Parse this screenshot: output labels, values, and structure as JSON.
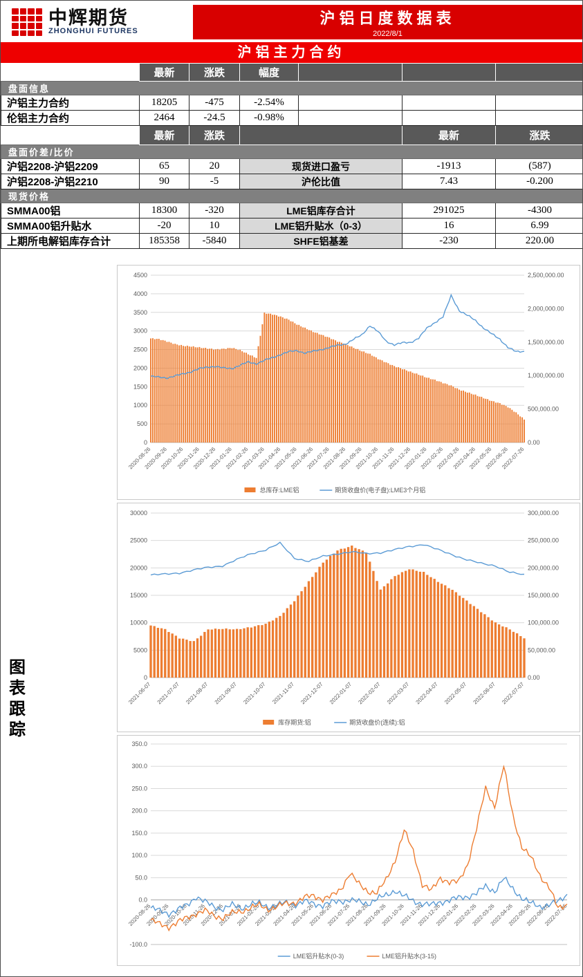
{
  "header": {
    "logo_title": "中辉期货",
    "logo_subtitle": "ZHONGHUI FUTURES",
    "report_title": "沪铝日度数据表",
    "report_date": "2022/8/1",
    "banner": "沪铝主力合约"
  },
  "colors": {
    "header_red": "#d80000",
    "banner_red": "#ee0000",
    "up_red": "#ff0000",
    "down_green": "#00b050",
    "table_dark": "#595959",
    "table_section": "#808080",
    "table_label_bg": "#d9d9d9",
    "bar_orange": "#ED7D31",
    "line_blue": "#5B9BD5"
  },
  "table": {
    "headers": {
      "latest": "最新",
      "change": "涨跌",
      "pct": "幅度"
    },
    "sections": [
      {
        "title": "盘面信息",
        "rows": [
          {
            "label": "沪铝主力合约",
            "latest": "18205",
            "change": "-475",
            "change_color": "green",
            "pct": "-2.54%"
          },
          {
            "label": "伦铝主力合约",
            "latest": "2464",
            "change": "-24.5",
            "change_color": "green",
            "pct": "-0.98%"
          }
        ]
      },
      {
        "title": "盘面价差/比价",
        "rows": [
          {
            "label": "沪铝2208-沪铝2209",
            "latest": "65",
            "change": "20",
            "change_color": "red",
            "mid_label": "现货进口盈亏",
            "latest2": "-1913",
            "latest2_color": "green",
            "change2": "(587)",
            "change2_color": "green"
          },
          {
            "label": "沪铝2208-沪铝2210",
            "latest": "90",
            "change": "-5",
            "change_color": "green",
            "mid_label": "沪伦比值",
            "latest2": "7.43",
            "change2": "-0.200",
            "change2_color": "green"
          }
        ]
      },
      {
        "title": "现货价格",
        "rows": [
          {
            "label": "SMMA00铝",
            "latest": "18300",
            "change": "-320",
            "change_color": "green",
            "mid_label": "LME铝库存合计",
            "latest2": "291025",
            "change2": "-4300",
            "change2_color": "green"
          },
          {
            "label": "SMMA00铝升贴水",
            "latest": "-20",
            "change": "10",
            "change_color": "red",
            "mid_label": "LME铝升贴水（0-3）",
            "latest2": "16",
            "change2": "6.99"
          },
          {
            "label": "上期所电解铝库存合计",
            "latest": "185358",
            "change": "-5840",
            "change_color": "green",
            "mid_label": "SHFE铝基差",
            "latest2": "-230",
            "change2": "220.00"
          }
        ]
      }
    ]
  },
  "side_label": "图表跟踪",
  "chart_data": [
    {
      "type": "bar+line",
      "x_labels": [
        "2020-08-26",
        "2020-09-26",
        "2020-10-26",
        "2020-11-26",
        "2020-12-26",
        "2021-01-26",
        "2021-02-26",
        "2021-03-26",
        "2021-04-26",
        "2021-05-26",
        "2021-06-26",
        "2021-07-26",
        "2021-08-26",
        "2021-09-26",
        "2021-10-26",
        "2021-11-26",
        "2021-12-26",
        "2022-01-26",
        "2022-02-26",
        "2022-03-26",
        "2022-04-26",
        "2022-05-26",
        "2022-06-26",
        "2022-07-26"
      ],
      "left_axis": {
        "min": 0,
        "max": 4500,
        "ticks": [
          [
            0,
            "0"
          ],
          [
            500,
            "500"
          ],
          [
            1000,
            "1000"
          ],
          [
            1500,
            "1500"
          ],
          [
            2000,
            "2000"
          ],
          [
            2500,
            "2500"
          ],
          [
            3000,
            "3000"
          ],
          [
            3500,
            "3500"
          ],
          [
            4000,
            "4000"
          ],
          [
            4500,
            "4500"
          ]
        ]
      },
      "right_axis": {
        "min": 0,
        "max": 2500000,
        "ticks": [
          [
            0,
            "0.00"
          ],
          [
            500000,
            "500,000.00"
          ],
          [
            1000000,
            "1,000,000.00"
          ],
          [
            1500000,
            "1,500,000.00"
          ],
          [
            2000000,
            "2,000,000.00"
          ],
          [
            2500000,
            "2,500,000.00"
          ]
        ]
      },
      "series": [
        {
          "name": "总库存:LME铝",
          "type": "bar",
          "axis": "right",
          "color": "#ED7D31",
          "values": [
            1555000,
            1545000,
            1510000,
            1470000,
            1445000,
            1435000,
            1420000,
            1405000,
            1390000,
            1400000,
            1415000,
            1380000,
            1320000,
            1265000,
            1935000,
            1915000,
            1880000,
            1835000,
            1765000,
            1710000,
            1655000,
            1610000,
            1565000,
            1510000,
            1470000,
            1415000,
            1365000,
            1320000,
            1250000,
            1195000,
            1140000,
            1100000,
            1055000,
            1015000,
            970000,
            935000,
            890000,
            850000,
            790000,
            750000,
            710000,
            665000,
            620000,
            585000,
            530000,
            445000,
            345000
          ]
        },
        {
          "name": "期货收盘价(电子盘):LME3个月铝",
          "type": "line",
          "axis": "left",
          "color": "#5B9BD5",
          "values": [
            1780,
            1755,
            1740,
            1790,
            1845,
            1910,
            1985,
            2030,
            2050,
            2000,
            1990,
            2080,
            2160,
            2120,
            2210,
            2280,
            2370,
            2440,
            2470,
            2410,
            2450,
            2500,
            2560,
            2610,
            2650,
            2780,
            2890,
            3150,
            2980,
            2720,
            2630,
            2680,
            2690,
            2810,
            3070,
            3230,
            3380,
            3950,
            3550,
            3420,
            3280,
            3080,
            2920,
            2780,
            2560,
            2440,
            2450
          ]
        }
      ]
    },
    {
      "type": "bar+line",
      "x_labels": [
        "2021-06-07",
        "2021-07-07",
        "2021-08-07",
        "2021-09-07",
        "2021-10-07",
        "2021-11-07",
        "2021-12-07",
        "2022-01-07",
        "2022-02-07",
        "2022-03-07",
        "2022-04-07",
        "2022-05-07",
        "2022-06-07",
        "2022-07-07"
      ],
      "left_axis": {
        "min": 0,
        "max": 30000,
        "ticks": [
          [
            0,
            "0"
          ],
          [
            5000,
            "5000"
          ],
          [
            10000,
            "10000"
          ],
          [
            15000,
            "15000"
          ],
          [
            20000,
            "20000"
          ],
          [
            25000,
            "25000"
          ],
          [
            30000,
            "30000"
          ]
        ]
      },
      "right_axis": {
        "min": 0,
        "max": 300000,
        "ticks": [
          [
            0,
            "0.00"
          ],
          [
            50000,
            "50,000.00"
          ],
          [
            100000,
            "100,000.00"
          ],
          [
            150000,
            "150,000.00"
          ],
          [
            200000,
            "200,000.00"
          ],
          [
            250000,
            "250,000.00"
          ],
          [
            300000,
            "300,000.00"
          ]
        ]
      },
      "series": [
        {
          "name": "库存期货:铝",
          "type": "bar",
          "axis": "right",
          "color": "#ED7D31",
          "values": [
            95000,
            88000,
            72000,
            66000,
            88000,
            89000,
            88000,
            92000,
            98000,
            112000,
            140000,
            175000,
            210000,
            232000,
            240000,
            228000,
            160000,
            185000,
            198000,
            192000,
            175000,
            160000,
            140000,
            120000,
            100000,
            88000,
            72000
          ]
        },
        {
          "name": "期货收盘价(连续):铝",
          "type": "line",
          "axis": "left",
          "color": "#5B9BD5",
          "values": [
            18700,
            18850,
            19100,
            19600,
            20100,
            20400,
            21500,
            22600,
            23300,
            24500,
            21800,
            21200,
            22100,
            22600,
            22900,
            22600,
            22800,
            23300,
            23900,
            24300,
            23300,
            22400,
            21500,
            20800,
            20400,
            19200,
            18700
          ]
        }
      ]
    },
    {
      "type": "line",
      "x_labels": [
        "2020-08-26",
        "2020-09-26",
        "2020-10-26",
        "2020-11-26",
        "2020-12-26",
        "2021-01-26",
        "2021-02-26",
        "2021-03-26",
        "2021-04-26",
        "2021-05-26",
        "2021-06-26",
        "2021-07-26",
        "2021-08-26",
        "2021-09-26",
        "2021-10-26",
        "2021-11-26",
        "2021-12-26",
        "2022-01-26",
        "2022-02-26",
        "2022-03-26",
        "2022-04-26",
        "2022-05-26",
        "2022-06-26",
        "2022-07-26"
      ],
      "left_axis": {
        "min": -100,
        "max": 350,
        "ticks": [
          [
            -100,
            "-100.0"
          ],
          [
            0,
            "0.0"
          ],
          [
            50,
            "50.0"
          ],
          [
            100,
            "100.0"
          ],
          [
            150,
            "150.0"
          ],
          [
            200,
            "200.0"
          ],
          [
            250,
            "250.0"
          ],
          [
            300,
            "300.0"
          ],
          [
            350,
            "350.0"
          ]
        ]
      },
      "series": [
        {
          "name": "LME铝升贴水(0-3)",
          "type": "line",
          "axis": "left",
          "color": "#5B9BD5",
          "values": [
            -18,
            -25,
            -30,
            -22,
            -12,
            8,
            -5,
            -15,
            -20,
            -12,
            -18,
            -10,
            -8,
            -15,
            -12,
            -6,
            -10,
            -4,
            -8,
            -12,
            -6,
            -2,
            0,
            -5,
            -8,
            2,
            10,
            22,
            8,
            -2,
            -8,
            -12,
            -5,
            0,
            4,
            8,
            15,
            30,
            20,
            48,
            25,
            5,
            -8,
            -15,
            -10,
            -5,
            12
          ]
        },
        {
          "name": "LME铝升贴水(3-15)",
          "type": "line",
          "axis": "left",
          "color": "#ED7D31",
          "values": [
            -45,
            -55,
            -60,
            -50,
            -40,
            -30,
            -25,
            -35,
            -40,
            -30,
            -25,
            -18,
            -12,
            -20,
            -15,
            -8,
            -5,
            5,
            10,
            2,
            8,
            25,
            60,
            35,
            20,
            15,
            45,
            90,
            155,
            110,
            35,
            20,
            50,
            40,
            40,
            80,
            160,
            250,
            210,
            300,
            190,
            120,
            95,
            55,
            30,
            -20,
            -10
          ]
        }
      ]
    }
  ]
}
